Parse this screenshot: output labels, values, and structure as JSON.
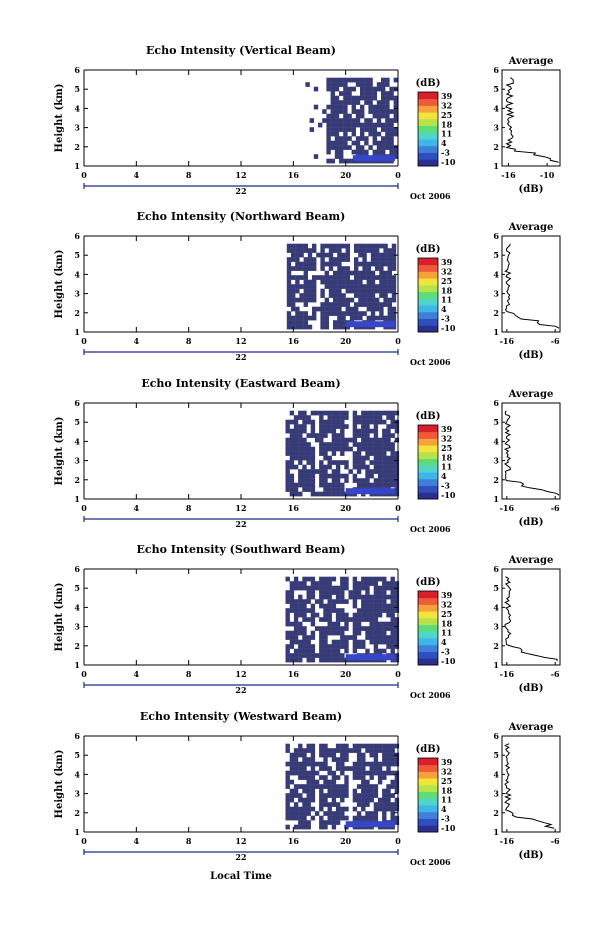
{
  "chart_data": {
    "type": "heatmap",
    "panels": [
      {
        "title": "Echo Intensity (Vertical Beam)",
        "ylabel": "Height (km)",
        "ylim": [
          1,
          6
        ],
        "yticks": [
          "1",
          "2",
          "3",
          "4",
          "5",
          "6"
        ],
        "xticks": [
          "0",
          "4",
          "8",
          "12",
          "16",
          "20",
          "0"
        ],
        "xlim": [
          0,
          24
        ],
        "day_label": "22",
        "month_label": "Oct 2006",
        "data_start_hour": 16.6,
        "data_start_km": 1.2,
        "data_top_km": 5.6,
        "colorbar": {
          "label": "(dB)",
          "ticks": [
            "39",
            "32",
            "25",
            "18",
            "11",
            "4",
            "-3",
            "-10"
          ]
        },
        "average": {
          "title": "Average",
          "xlabel": "(dB)",
          "xticks": [
            "-16",
            "-10"
          ],
          "xlim": [
            -17,
            -8
          ],
          "yticks": [
            "1",
            "2",
            "3",
            "4",
            "5",
            "6"
          ]
        }
      },
      {
        "title": "Echo Intensity (Northward Beam)",
        "ylabel": "Height (km)",
        "ylim": [
          1,
          6
        ],
        "yticks": [
          "1",
          "2",
          "3",
          "4",
          "5",
          "6"
        ],
        "xticks": [
          "0",
          "4",
          "8",
          "12",
          "16",
          "20",
          "0"
        ],
        "xlim": [
          0,
          24
        ],
        "day_label": "22",
        "month_label": "Oct 2006",
        "data_start_hour": 15.5,
        "data_start_km": 1.2,
        "data_top_km": 5.6,
        "colorbar": {
          "label": "(dB)",
          "ticks": [
            "39",
            "32",
            "25",
            "18",
            "11",
            "4",
            "-3",
            "-10"
          ]
        },
        "average": {
          "title": "Average",
          "xlabel": "(dB)",
          "xticks": [
            "-16",
            "-6"
          ],
          "xlim": [
            -17,
            -5
          ],
          "yticks": [
            "1",
            "2",
            "3",
            "4",
            "5",
            "6"
          ]
        }
      },
      {
        "title": "Echo Intensity (Eastward Beam)",
        "ylabel": "Height (km)",
        "ylim": [
          1,
          6
        ],
        "yticks": [
          "1",
          "2",
          "3",
          "4",
          "5",
          "6"
        ],
        "xticks": [
          "0",
          "4",
          "8",
          "12",
          "16",
          "20",
          "0"
        ],
        "xlim": [
          0,
          24
        ],
        "day_label": "22",
        "month_label": "Oct 2006",
        "data_start_hour": 15.4,
        "data_start_km": 1.2,
        "data_top_km": 5.6,
        "colorbar": {
          "label": "(dB)",
          "ticks": [
            "39",
            "32",
            "25",
            "18",
            "11",
            "4",
            "-3",
            "-10"
          ]
        },
        "average": {
          "title": "Average",
          "xlabel": "(dB)",
          "xticks": [
            "-16",
            "-6"
          ],
          "xlim": [
            -17,
            -5
          ],
          "yticks": [
            "1",
            "2",
            "3",
            "4",
            "5",
            "6"
          ]
        }
      },
      {
        "title": "Echo Intensity (Southward Beam)",
        "ylabel": "Height (km)",
        "ylim": [
          1,
          6
        ],
        "yticks": [
          "1",
          "2",
          "3",
          "4",
          "5",
          "6"
        ],
        "xticks": [
          "0",
          "4",
          "8",
          "12",
          "16",
          "20",
          "0"
        ],
        "xlim": [
          0,
          24
        ],
        "day_label": "22",
        "month_label": "Oct 2006",
        "data_start_hour": 15.4,
        "data_start_km": 1.2,
        "data_top_km": 5.6,
        "colorbar": {
          "label": "(dB)",
          "ticks": [
            "39",
            "32",
            "25",
            "18",
            "11",
            "4",
            "-3",
            "-10"
          ]
        },
        "average": {
          "title": "Average",
          "xlabel": "(dB)",
          "xticks": [
            "-16",
            "-6"
          ],
          "xlim": [
            -17,
            -5
          ],
          "yticks": [
            "1",
            "2",
            "3",
            "4",
            "5",
            "6"
          ]
        }
      },
      {
        "title": "Echo Intensity (Westward Beam)",
        "ylabel": "Height (km)",
        "ylim": [
          1,
          6
        ],
        "yticks": [
          "1",
          "2",
          "3",
          "4",
          "5",
          "6"
        ],
        "xticks": [
          "0",
          "4",
          "8",
          "12",
          "16",
          "20",
          "0"
        ],
        "xlim": [
          0,
          24
        ],
        "day_label": "22",
        "month_label": "Oct 2006",
        "data_start_hour": 15.4,
        "data_start_km": 1.2,
        "data_top_km": 5.6,
        "colorbar": {
          "label": "(dB)",
          "ticks": [
            "39",
            "32",
            "25",
            "18",
            "11",
            "4",
            "-3",
            "-10"
          ]
        },
        "average": {
          "title": "Average",
          "xlabel": "(dB)",
          "xticks": [
            "-16",
            "-6"
          ],
          "xlim": [
            -17,
            -5
          ],
          "yticks": [
            "1",
            "2",
            "3",
            "4",
            "5",
            "6"
          ]
        }
      }
    ],
    "xlabel": "Local Time",
    "colormap": [
      "#2b2f8f",
      "#2f4fbf",
      "#3f7fd8",
      "#3fb6e8",
      "#4fd6c8",
      "#5fdc7a",
      "#b6e24a",
      "#f2e43a",
      "#f6a23a",
      "#ee5a3a",
      "#d7202c"
    ],
    "field_color": "#363a76",
    "low_band_color": "#3546c8"
  }
}
